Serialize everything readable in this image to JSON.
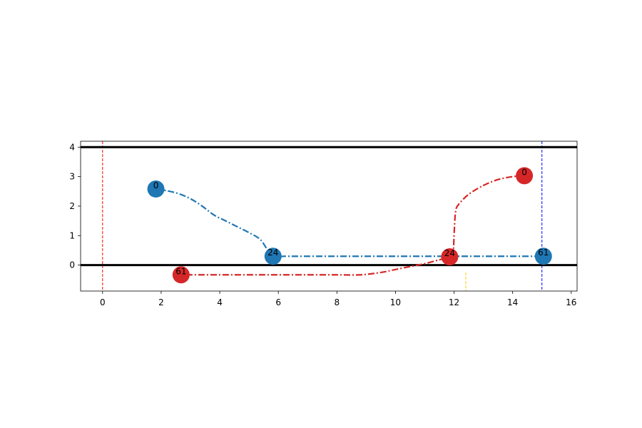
{
  "chart_data": {
    "type": "line",
    "title": "",
    "xlabel": "",
    "ylabel": "",
    "xlim": [
      -0.75,
      16.2
    ],
    "ylim": [
      -0.88,
      4.2
    ],
    "xticks": [
      0,
      2,
      4,
      6,
      8,
      10,
      12,
      14,
      16
    ],
    "yticks": [
      0,
      1,
      2,
      3,
      4
    ],
    "grid": false,
    "legend": "none",
    "hlines": [
      {
        "y": 4,
        "color": "#000000",
        "style": "solid"
      },
      {
        "y": 0,
        "color": "#000000",
        "style": "solid"
      }
    ],
    "vlines": [
      {
        "x": 0,
        "color": "#ff0000",
        "style": "dashed"
      },
      {
        "x": 15,
        "color": "#0000ff",
        "style": "dashed"
      },
      {
        "x": 12.4,
        "y_range": [
          -0.88,
          -0.25
        ],
        "color": "#ffcc00",
        "style": "dashed"
      }
    ],
    "series": [
      {
        "color": "#1f77b4",
        "style": "dashdot",
        "x": [
          1.82,
          2.2,
          2.6,
          3.0,
          3.4,
          3.8,
          4.2,
          4.6,
          5.0,
          5.4,
          5.8,
          6.2,
          7,
          8,
          9,
          10,
          11,
          12,
          13,
          14,
          15
        ],
        "y": [
          2.58,
          2.52,
          2.42,
          2.25,
          2.0,
          1.7,
          1.5,
          1.3,
          1.1,
          0.85,
          0.3,
          0.3,
          0.3,
          0.3,
          0.3,
          0.3,
          0.3,
          0.3,
          0.3,
          0.3,
          0.3
        ],
        "markers": [
          {
            "x": 1.82,
            "y": 2.58,
            "label": "0"
          },
          {
            "x": 5.82,
            "y": 0.3,
            "label": "24"
          },
          {
            "x": 15.05,
            "y": 0.3,
            "label": "61"
          }
        ]
      },
      {
        "color": "#d62728",
        "style": "dashdot",
        "x": [
          14.4,
          14.0,
          13.5,
          13.0,
          12.5,
          12.15,
          12.05,
          12.0,
          11.98,
          11.95,
          11.85,
          11.5,
          11.0,
          10.5,
          10.0,
          9.5,
          8.8,
          8.0,
          7.0,
          6.0,
          5.0,
          4.0,
          3.0,
          2.68
        ],
        "y": [
          3.03,
          3.0,
          2.9,
          2.7,
          2.4,
          2.05,
          1.8,
          1.0,
          0.5,
          0.35,
          0.28,
          0.18,
          0.05,
          -0.05,
          -0.15,
          -0.25,
          -0.33,
          -0.33,
          -0.33,
          -0.33,
          -0.33,
          -0.33,
          -0.33,
          -0.33
        ],
        "markers": [
          {
            "x": 14.4,
            "y": 3.03,
            "label": "0"
          },
          {
            "x": 11.85,
            "y": 0.28,
            "label": "24"
          },
          {
            "x": 2.68,
            "y": -0.33,
            "label": "61"
          }
        ]
      }
    ]
  }
}
